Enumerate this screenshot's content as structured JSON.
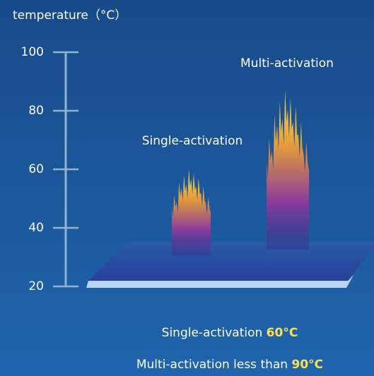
{
  "chart_data": {
    "type": "flame",
    "title": "temperature（°C）",
    "categories": [
      "Single-activation",
      "Multi-activation"
    ],
    "values": [
      60,
      87
    ],
    "ylim": [
      20,
      100
    ],
    "yticks": [
      20,
      40,
      60,
      80,
      100
    ],
    "notes": [
      {
        "text": "Single-activation",
        "highlight": "60°C"
      },
      {
        "text": "Multi-activation less than",
        "highlight": "90°C"
      }
    ]
  }
}
